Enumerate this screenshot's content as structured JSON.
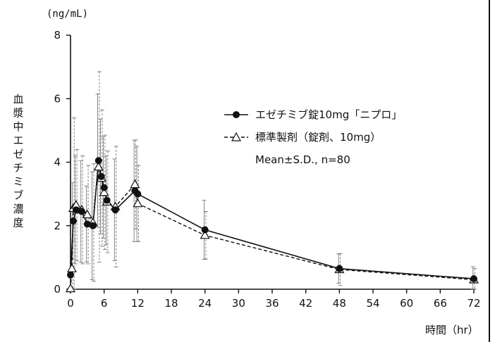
{
  "chart_data": {
    "type": "line",
    "y_unit_label": "(ng/mL)",
    "ylabel": "血漿中エゼチミブ濃度",
    "xlabel": "時間（hr）",
    "xlim": [
      0,
      72
    ],
    "ylim": [
      0,
      8
    ],
    "x_ticks": [
      0,
      6,
      12,
      18,
      24,
      30,
      36,
      42,
      48,
      54,
      60,
      66,
      72
    ],
    "y_ticks": [
      0,
      2,
      4,
      6,
      8
    ],
    "series": [
      {
        "name": "エゼチミブ錠10mg「ニプロ」",
        "marker": "filled-circle",
        "line_style": "solid",
        "points": [
          {
            "x": 0,
            "y": 0.45,
            "sd": 0.0
          },
          {
            "x": 0.5,
            "y": 2.15,
            "sd": 1.2
          },
          {
            "x": 1,
            "y": 2.5,
            "sd": 1.7
          },
          {
            "x": 2,
            "y": 2.45,
            "sd": 1.6
          },
          {
            "x": 3,
            "y": 2.05,
            "sd": 1.2
          },
          {
            "x": 4,
            "y": 2.0,
            "sd": 1.7
          },
          {
            "x": 5,
            "y": 4.05,
            "sd": 2.1
          },
          {
            "x": 5.5,
            "y": 3.55,
            "sd": 1.8
          },
          {
            "x": 6,
            "y": 3.2,
            "sd": 1.6
          },
          {
            "x": 6.5,
            "y": 2.8,
            "sd": 1.4
          },
          {
            "x": 8,
            "y": 2.5,
            "sd": 1.6
          },
          {
            "x": 11.5,
            "y": 3.1,
            "sd": 1.6
          },
          {
            "x": 12,
            "y": 3.0,
            "sd": 1.5
          },
          {
            "x": 24,
            "y": 1.87,
            "sd": 0.93
          },
          {
            "x": 48,
            "y": 0.65,
            "sd": 0.46
          },
          {
            "x": 72,
            "y": 0.33,
            "sd": 0.38
          }
        ]
      },
      {
        "name": "標準製剤（錠剤、10mg）",
        "marker": "open-triangle",
        "line_style": "dashed",
        "points": [
          {
            "x": 0,
            "y": 0.02,
            "sd": 0.0
          },
          {
            "x": 0.25,
            "y": 0.65,
            "sd": 0.9
          },
          {
            "x": 0.5,
            "y": 2.55,
            "sd": 2.85
          },
          {
            "x": 1,
            "y": 2.65,
            "sd": 1.75
          },
          {
            "x": 2,
            "y": 2.5,
            "sd": 1.7
          },
          {
            "x": 3,
            "y": 2.35,
            "sd": 1.55
          },
          {
            "x": 4,
            "y": 2.1,
            "sd": 1.85
          },
          {
            "x": 5,
            "y": 3.85,
            "sd": 3.0
          },
          {
            "x": 5.5,
            "y": 3.5,
            "sd": 2.15
          },
          {
            "x": 6,
            "y": 3.05,
            "sd": 1.8
          },
          {
            "x": 6.5,
            "y": 2.75,
            "sd": 1.6
          },
          {
            "x": 8,
            "y": 2.6,
            "sd": 1.9
          },
          {
            "x": 11.5,
            "y": 3.3,
            "sd": 1.4
          },
          {
            "x": 12,
            "y": 2.7,
            "sd": 1.2
          },
          {
            "x": 24,
            "y": 1.7,
            "sd": 0.75
          },
          {
            "x": 48,
            "y": 0.62,
            "sd": 0.5
          },
          {
            "x": 72,
            "y": 0.3,
            "sd": 0.35
          }
        ]
      }
    ],
    "annotation": "Mean±S.D., n=80",
    "legend_position": "right-middle",
    "grid": false
  }
}
